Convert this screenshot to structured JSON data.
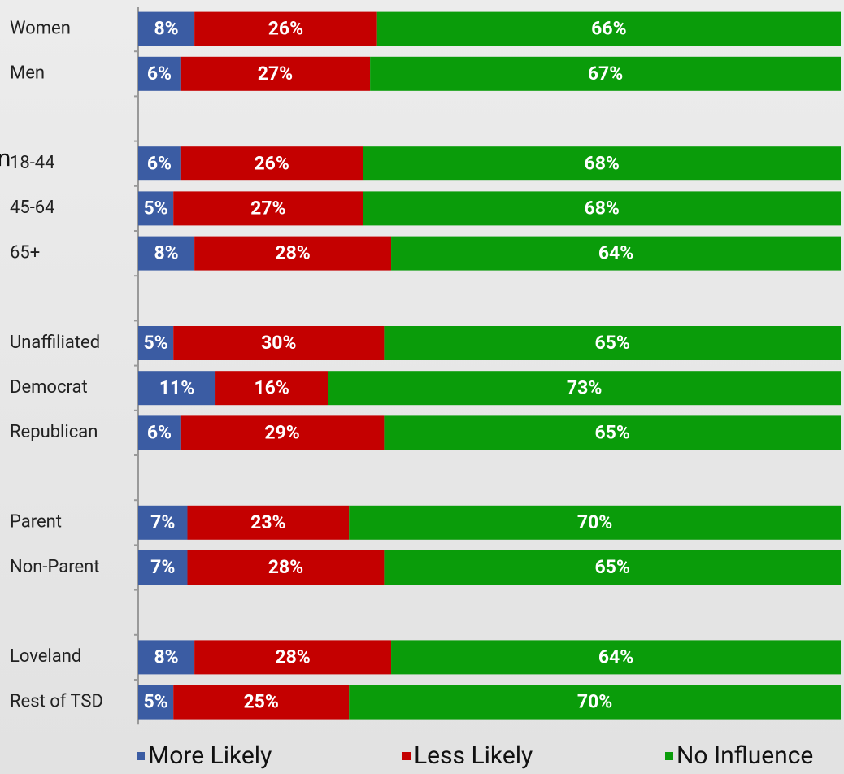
{
  "chart_data": {
    "type": "stacked-barh",
    "annotation": "n",
    "categories": [
      "Women",
      "Men",
      null,
      "18-44",
      "45-64",
      "65+",
      null,
      "Unaffiliated",
      "Democrat",
      "Republican",
      null,
      "Parent",
      "Non-Parent",
      null,
      "Loveland",
      "Rest of TSD"
    ],
    "series": [
      {
        "name": "More Likely",
        "color": "#3b5ca3",
        "values": [
          8,
          6,
          null,
          6,
          5,
          8,
          null,
          5,
          11,
          6,
          null,
          7,
          7,
          null,
          8,
          5
        ],
        "value_labels": [
          "8%",
          "6%",
          null,
          "6%",
          "5%",
          "8%",
          null,
          "5%",
          "11%",
          "6%",
          null,
          "7%",
          "7%",
          null,
          "8%",
          "5%"
        ]
      },
      {
        "name": "Less Likely",
        "color": "#c40000",
        "values": [
          26,
          27,
          null,
          26,
          27,
          28,
          null,
          30,
          16,
          29,
          null,
          23,
          28,
          null,
          28,
          25
        ],
        "value_labels": [
          "26%",
          "27%",
          null,
          "26%",
          "27%",
          "28%",
          null,
          "30%",
          "16%",
          "29%",
          null,
          "23%",
          "28%",
          null,
          "28%",
          "25%"
        ]
      },
      {
        "name": "No Influence",
        "color": "#0a9c0a",
        "values": [
          66,
          67,
          null,
          68,
          68,
          64,
          null,
          65,
          73,
          65,
          null,
          70,
          65,
          null,
          64,
          70
        ],
        "value_labels": [
          "66%",
          "67%",
          null,
          "68%",
          "68%",
          "64%",
          null,
          "65%",
          "73%",
          "65%",
          null,
          "70%",
          "65%",
          null,
          "64%",
          "70%"
        ]
      }
    ],
    "xlim": [
      0,
      100
    ],
    "legend": "bottom"
  }
}
